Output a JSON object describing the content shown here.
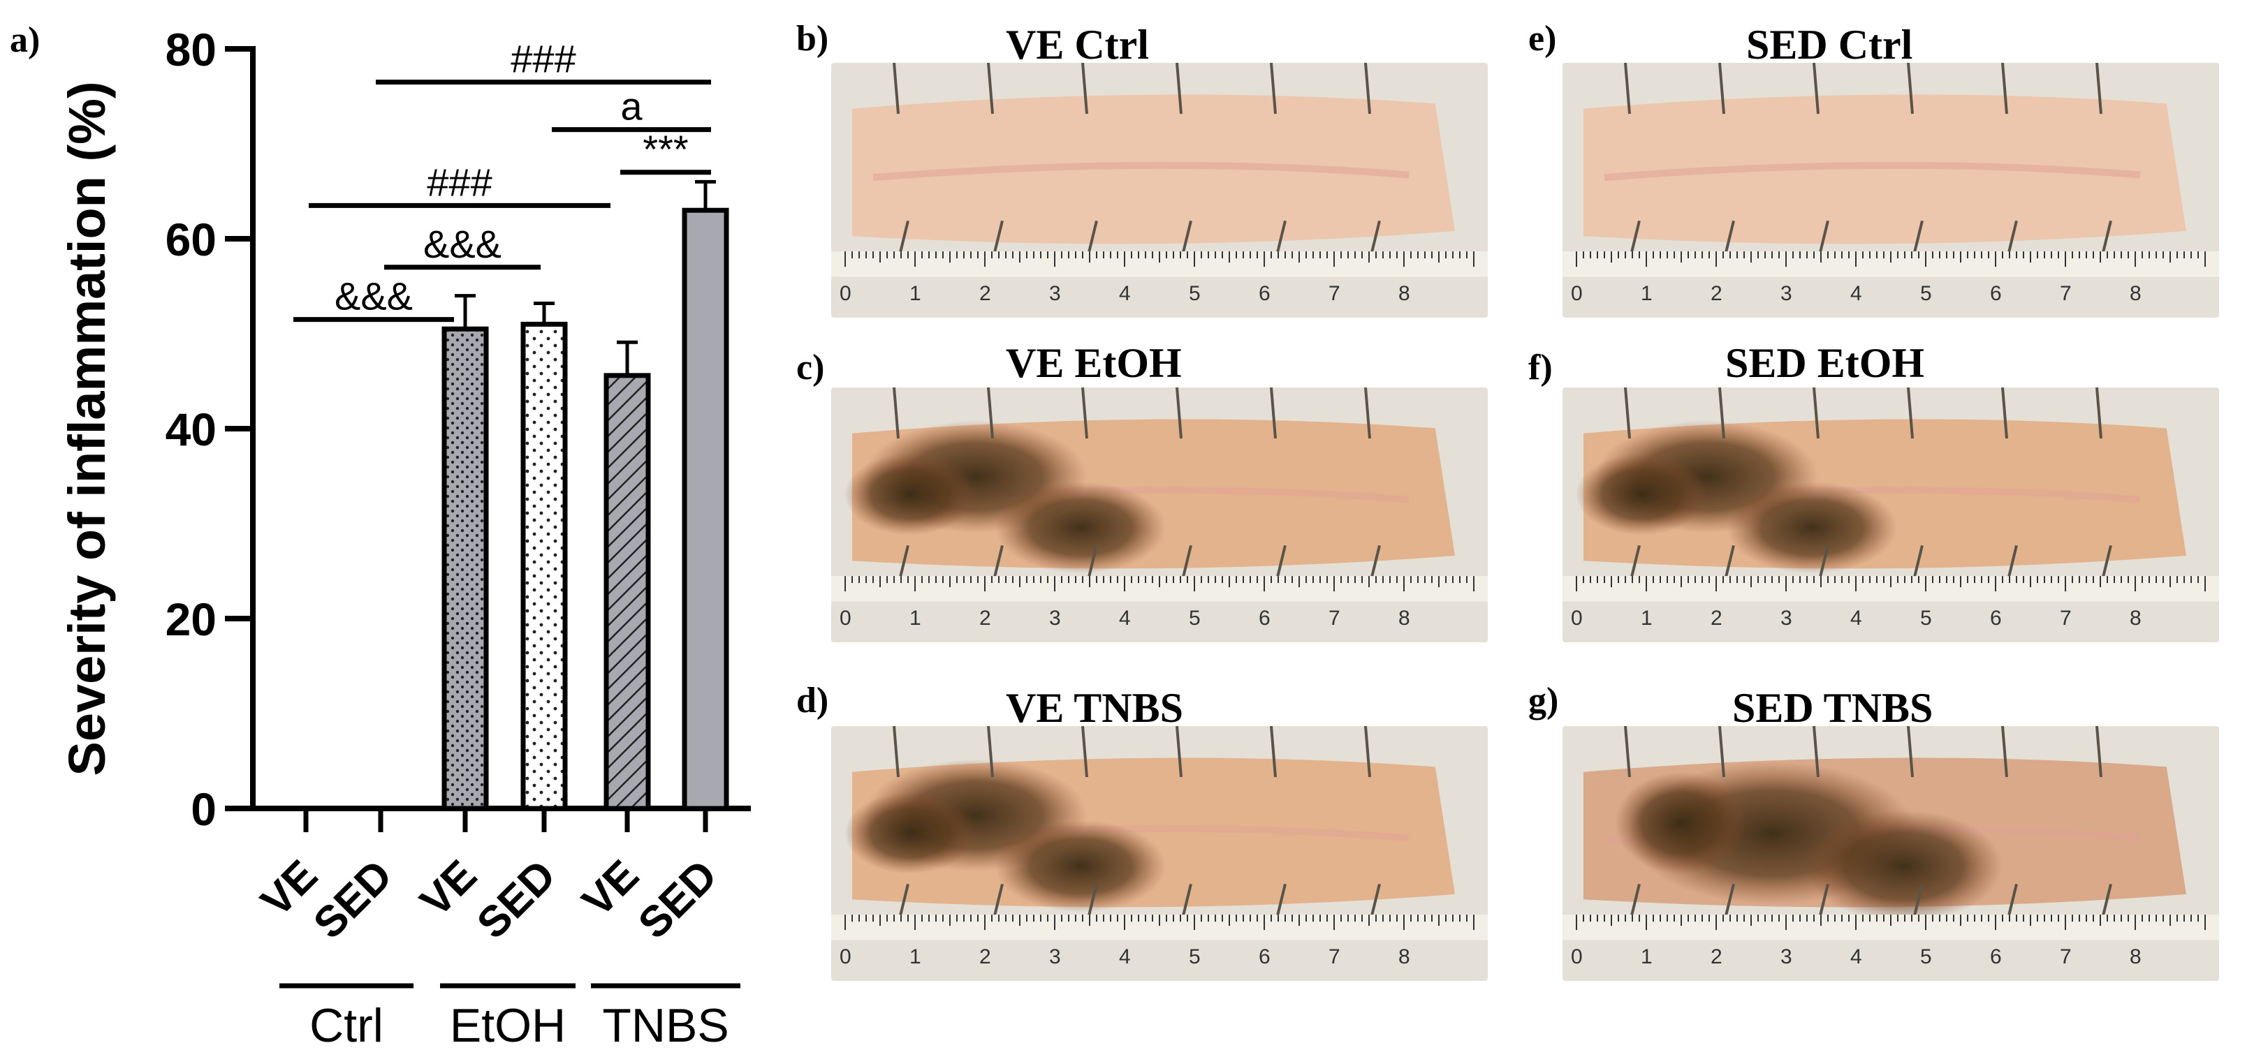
{
  "panel_labels": [
    "a)",
    "b)",
    "c)",
    "d)",
    "e)",
    "f)",
    "g)"
  ],
  "chart_data": {
    "type": "bar",
    "ylabel": "Severity of inflammation (%)",
    "ylim": [
      0,
      80
    ],
    "yticks": [
      0,
      20,
      40,
      60,
      80
    ],
    "categories": [
      "VE",
      "SED",
      "VE",
      "SED",
      "VE",
      "SED"
    ],
    "groups": [
      {
        "label": "Ctrl",
        "members": [
          0,
          1
        ]
      },
      {
        "label": "EtOH",
        "members": [
          2,
          3
        ]
      },
      {
        "label": "TNBS",
        "members": [
          4,
          5
        ]
      }
    ],
    "values": [
      0,
      0,
      50.5,
      51,
      45.6,
      63
    ],
    "errors": [
      0,
      0,
      3.5,
      2.2,
      3.5,
      3
    ],
    "bar_fills": [
      "none",
      "none",
      "dotted-dense-grey",
      "dotted-sparse-white",
      "hatched-grey",
      "solid-grey"
    ],
    "significance": [
      {
        "label": "###",
        "from": 1,
        "to": 5,
        "level": 76.5
      },
      {
        "label": "a",
        "from": 3,
        "to": 5,
        "level": 71.5
      },
      {
        "label": "***",
        "from": 4,
        "to": 5,
        "level": 67
      },
      {
        "label": "###",
        "from": 0,
        "to": 4,
        "level": 63.5
      },
      {
        "label": "&&&",
        "from": 1,
        "to": 3,
        "level": 57
      },
      {
        "label": "&&&",
        "from": 0,
        "to": 2,
        "level": 51.5
      }
    ],
    "colors": {
      "bar_grey": "#a8a8b0",
      "axis": "#000000"
    }
  },
  "photos": [
    {
      "letter": "b)",
      "title": "VE Ctrl",
      "severity": "none",
      "ruler_labels": [
        "0",
        "1",
        "2",
        "3",
        "4",
        "5",
        "6",
        "7",
        "8"
      ]
    },
    {
      "letter": "c)",
      "title": "VE EtOH",
      "severity": "moderate",
      "ruler_labels": [
        "0",
        "1",
        "2",
        "3",
        "4",
        "5",
        "6",
        "7",
        "8"
      ]
    },
    {
      "letter": "d)",
      "title": "VE TNBS",
      "severity": "moderate",
      "ruler_labels": [
        "0",
        "1",
        "2",
        "3",
        "4",
        "5",
        "6",
        "7",
        "8"
      ]
    },
    {
      "letter": "e)",
      "title": "SED Ctrl",
      "severity": "none",
      "ruler_labels": [
        "0",
        "1",
        "2",
        "3",
        "4",
        "5",
        "6",
        "7",
        "8"
      ]
    },
    {
      "letter": "f)",
      "title": "SED EtOH",
      "severity": "moderate",
      "ruler_labels": [
        "0",
        "1",
        "2",
        "3",
        "4",
        "5",
        "6",
        "7",
        "8"
      ]
    },
    {
      "letter": "g)",
      "title": "SED TNBS",
      "severity": "severe",
      "ruler_labels": [
        "0",
        "1",
        "2",
        "3",
        "4",
        "5",
        "6",
        "7",
        "8"
      ]
    }
  ]
}
